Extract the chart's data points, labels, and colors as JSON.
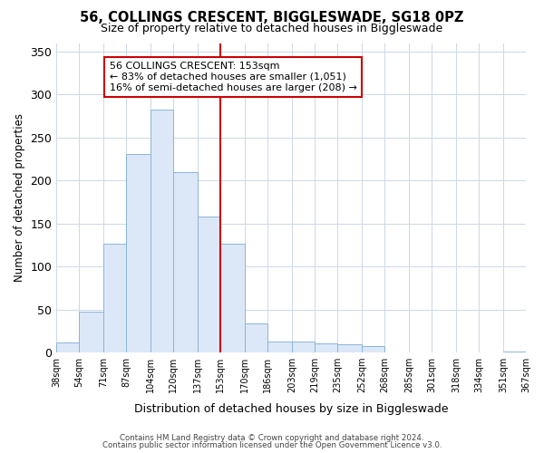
{
  "title": "56, COLLINGS CRESCENT, BIGGLESWADE, SG18 0PZ",
  "subtitle": "Size of property relative to detached houses in Biggleswade",
  "xlabel": "Distribution of detached houses by size in Biggleswade",
  "ylabel": "Number of detached properties",
  "bin_labels": [
    "38sqm",
    "54sqm",
    "71sqm",
    "87sqm",
    "104sqm",
    "120sqm",
    "137sqm",
    "153sqm",
    "170sqm",
    "186sqm",
    "203sqm",
    "219sqm",
    "235sqm",
    "252sqm",
    "268sqm",
    "285sqm",
    "301sqm",
    "318sqm",
    "334sqm",
    "351sqm",
    "367sqm"
  ],
  "bin_edges": [
    38,
    54,
    71,
    87,
    104,
    120,
    137,
    153,
    170,
    186,
    203,
    219,
    235,
    252,
    268,
    285,
    301,
    318,
    334,
    351,
    367
  ],
  "bar_heights": [
    12,
    47,
    127,
    231,
    283,
    210,
    158,
    126,
    34,
    13,
    13,
    11,
    10,
    7,
    0,
    0,
    0,
    0,
    0,
    1
  ],
  "bar_color": "#dce8f8",
  "bar_edge_color": "#8ab4d8",
  "reference_line_x": 153,
  "reference_line_color": "#cc0000",
  "annotation_title": "56 COLLINGS CRESCENT: 153sqm",
  "annotation_line1": "← 83% of detached houses are smaller (1,051)",
  "annotation_line2": "16% of semi-detached houses are larger (208) →",
  "annotation_box_edge_color": "#cc0000",
  "ylim": [
    0,
    360
  ],
  "yticks": [
    0,
    50,
    100,
    150,
    200,
    250,
    300,
    350
  ],
  "footer1": "Contains HM Land Registry data © Crown copyright and database right 2024.",
  "footer2": "Contains public sector information licensed under the Open Government Licence v3.0.",
  "background_color": "#ffffff",
  "grid_color": "#ccd8e8"
}
